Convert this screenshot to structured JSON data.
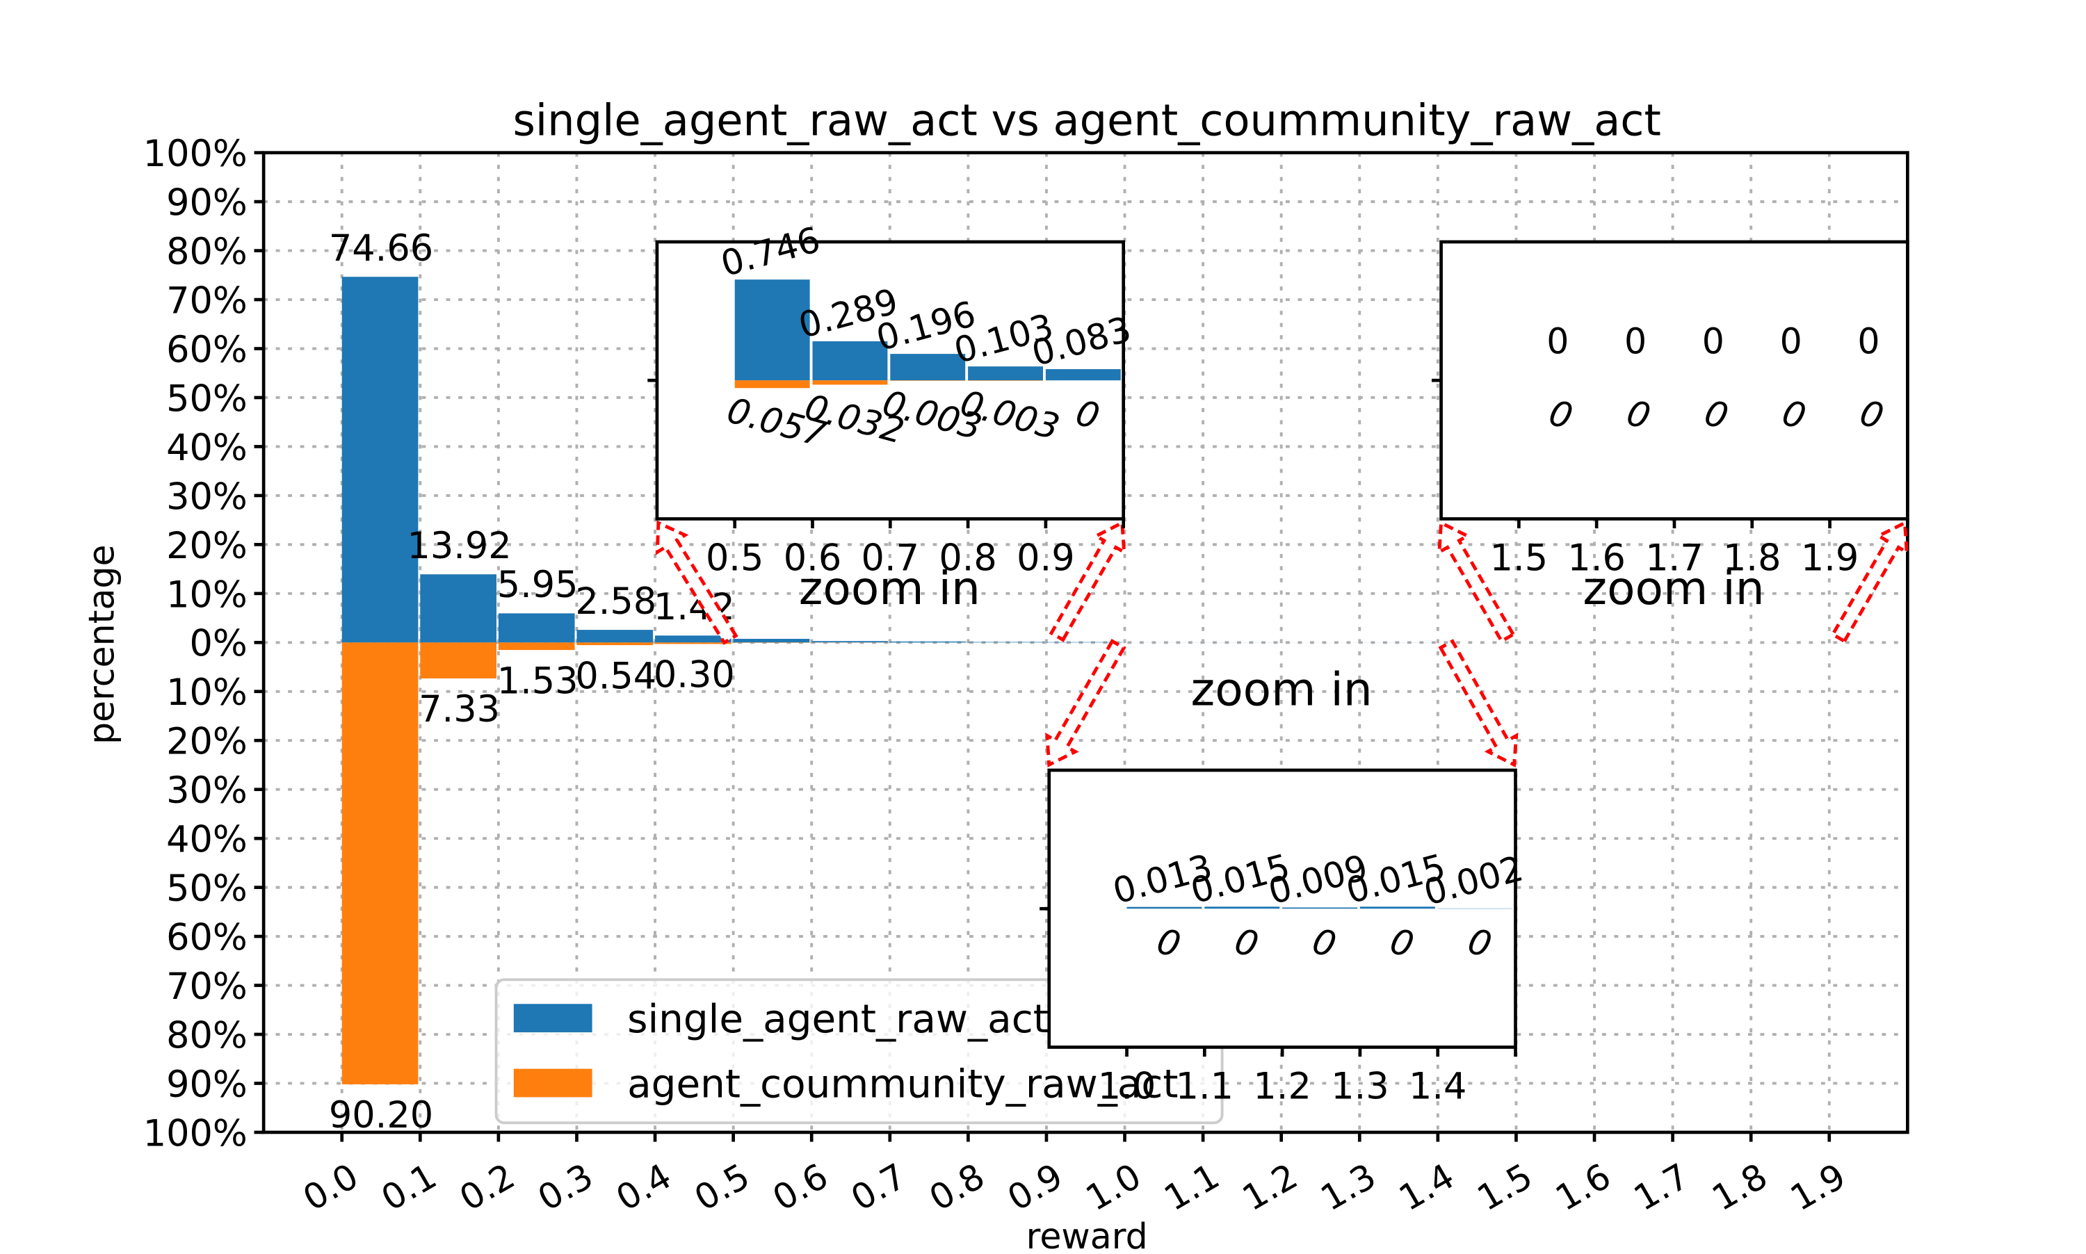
{
  "chart_data": {
    "type": "bar",
    "title": "single_agent_raw_act vs agent_coummunity_raw_act",
    "xlabel": "reward",
    "ylabel": "percentage",
    "xlim": [
      -0.1,
      2.0
    ],
    "ylim": [
      -100,
      100
    ],
    "x_tick_labels": [
      "0.0",
      "0.1",
      "0.2",
      "0.3",
      "0.4",
      "0.5",
      "0.6",
      "0.7",
      "0.8",
      "0.9",
      "1.0",
      "1.1",
      "1.2",
      "1.3",
      "1.4",
      "1.5",
      "1.6",
      "1.7",
      "1.8",
      "1.9"
    ],
    "y_tick_labels": [
      "100%",
      "90%",
      "80%",
      "70%",
      "60%",
      "50%",
      "40%",
      "30%",
      "20%",
      "10%",
      "0%",
      "10%",
      "20%",
      "30%",
      "40%",
      "50%",
      "60%",
      "70%",
      "80%",
      "90%",
      "100%"
    ],
    "grid": true,
    "legend": "lower-left",
    "series": [
      {
        "name": "single_agent_raw_act",
        "color": "#1f77b4",
        "x": [
          0.0,
          0.1,
          0.2,
          0.3,
          0.4,
          0.5,
          0.6,
          0.7,
          0.8,
          0.9,
          1.0,
          1.1,
          1.2,
          1.3,
          1.4,
          1.5,
          1.6,
          1.7,
          1.8,
          1.9
        ],
        "values": [
          74.66,
          13.92,
          5.95,
          2.58,
          1.42,
          0.746,
          0.289,
          0.196,
          0.103,
          0.083,
          0.013,
          0.015,
          0.009,
          0.015,
          0.002,
          0,
          0,
          0,
          0,
          0
        ],
        "main_labels": [
          "74.66",
          "13.92",
          "5.95",
          "2.58",
          "1.42"
        ]
      },
      {
        "name": "agent_coummunity_raw_act",
        "color": "#ff7f0e",
        "x": [
          0.0,
          0.1,
          0.2,
          0.3,
          0.4,
          0.5,
          0.6,
          0.7,
          0.8,
          0.9,
          1.0,
          1.1,
          1.2,
          1.3,
          1.4,
          1.5,
          1.6,
          1.7,
          1.8,
          1.9
        ],
        "values": [
          90.2,
          7.33,
          1.53,
          0.54,
          0.3,
          0.057,
          0.032,
          0.003,
          0.003,
          0,
          0,
          0,
          0,
          0,
          0,
          0,
          0,
          0,
          0,
          0
        ],
        "main_labels": [
          "90.20",
          "7.33",
          "1.53",
          "0.54",
          "0.30"
        ]
      }
    ],
    "insets": [
      {
        "caption": "zoom in",
        "x_tick_labels": [
          "0.5",
          "0.6",
          "0.7",
          "0.8",
          "0.9"
        ],
        "single_values": [
          0.746,
          0.289,
          0.196,
          0.103,
          0.083
        ],
        "community_values": [
          0.057,
          0.032,
          0.003,
          0.003,
          0
        ],
        "single_labels": [
          "0.746",
          "0.289",
          "0.196",
          "0.103",
          "0.083"
        ],
        "community_labels": [
          "0.057",
          "0.032",
          "0.003",
          "0.003",
          "0"
        ]
      },
      {
        "caption": "zoom in",
        "x_tick_labels": [
          "1.0",
          "1.1",
          "1.2",
          "1.3",
          "1.4"
        ],
        "single_values": [
          0.013,
          0.015,
          0.009,
          0.015,
          0.002
        ],
        "community_values": [
          0,
          0,
          0,
          0,
          0
        ],
        "single_labels": [
          "0.013",
          "0.015",
          "0.009",
          "0.015",
          "0.002"
        ],
        "community_labels": [
          "0",
          "0",
          "0",
          "0",
          "0"
        ]
      },
      {
        "caption": "zoom in",
        "x_tick_labels": [
          "1.5",
          "1.6",
          "1.7",
          "1.8",
          "1.9"
        ],
        "single_values": [
          0,
          0,
          0,
          0,
          0
        ],
        "community_values": [
          0,
          0,
          0,
          0,
          0
        ],
        "single_labels": [
          "0",
          "0",
          "0",
          "0",
          "0"
        ],
        "community_labels": [
          "0",
          "0",
          "0",
          "0",
          "0"
        ]
      }
    ]
  }
}
